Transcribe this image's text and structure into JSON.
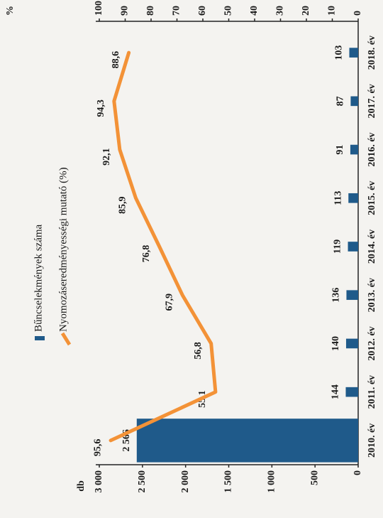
{
  "chart_data": {
    "type": "bar",
    "categories": [
      "2010. év",
      "2011. év",
      "2012. év",
      "2013. év",
      "2014. év",
      "2015. év",
      "2016. év",
      "2017. év",
      "2018. év"
    ],
    "series": [
      {
        "name": "Bűncselekmények száma",
        "type": "bar",
        "color": "#1f5a8a",
        "values": [
          2566,
          144,
          140,
          136,
          119,
          113,
          91,
          87,
          103
        ],
        "value_labels": [
          "2 566",
          "144",
          "140",
          "136",
          "119",
          "113",
          "91",
          "87",
          "103"
        ]
      },
      {
        "name": "Nyomozáseredményességi mutató (%)",
        "type": "line",
        "axis": "y2",
        "color": "#f39237",
        "values": [
          95.6,
          55.1,
          56.8,
          67.9,
          76.8,
          85.9,
          92.1,
          94.3,
          88.6
        ],
        "value_labels": [
          "95,6",
          "55,1",
          "56,8",
          "67,9",
          "76,8",
          "85,9",
          "92,1",
          "94,3",
          "88,6"
        ]
      }
    ],
    "ylabel": "db",
    "y2label": "%",
    "ylim": [
      0,
      3000
    ],
    "yticks": [
      0,
      500,
      {
        "value": 1000,
        "label": "1 000"
      },
      {
        "value": 1500,
        "label": "1 500"
      },
      {
        "value": 2000,
        "label": "2 000"
      },
      {
        "value": 2500,
        "label": "2 500"
      },
      {
        "value": 3000,
        "label": "3 000"
      }
    ],
    "y2lim": [
      0,
      100
    ],
    "y2ticks": [
      0,
      10,
      20,
      30,
      40,
      50,
      60,
      70,
      80,
      90,
      100
    ],
    "grid": false
  }
}
